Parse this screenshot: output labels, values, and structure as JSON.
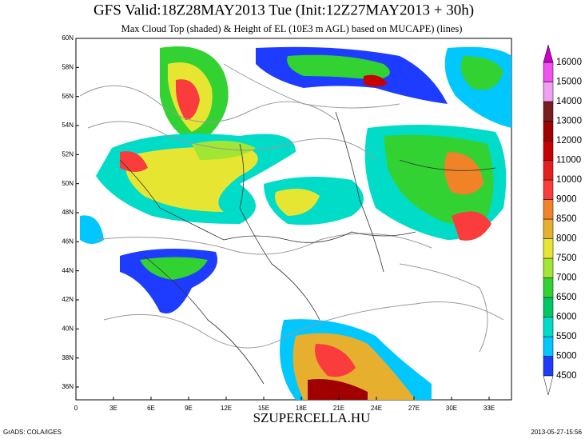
{
  "header": {
    "title": "GFS Valid:18Z28MAY2013 Tue (Init:12Z27MAY2013 + 30h)",
    "subtitle": "Max Cloud Top (shaded) & Height of EL (10E3 m AGL) based on MUCAPE) (lines)"
  },
  "map": {
    "lat_labels": [
      "36N",
      "38N",
      "40N",
      "42N",
      "44N",
      "46N",
      "48N",
      "50N",
      "52N",
      "54N",
      "56N",
      "58N",
      "60N"
    ],
    "lon_labels": [
      "0",
      "3E",
      "6E",
      "9E",
      "12E",
      "15E",
      "18E",
      "21E",
      "24E",
      "27E",
      "30E",
      "33E"
    ]
  },
  "colorbar": {
    "labels": [
      "4500",
      "5000",
      "5500",
      "6000",
      "6500",
      "7000",
      "7500",
      "8000",
      "8500",
      "9000",
      "10000",
      "11000",
      "12000",
      "13000",
      "14000",
      "15000",
      "16000"
    ],
    "colors": [
      "#1e3cff",
      "#00c8ff",
      "#00dcc8",
      "#00c864",
      "#32d232",
      "#a0e632",
      "#e6e632",
      "#e6af2d",
      "#f08228",
      "#fa3c3c",
      "#e61e1e",
      "#c80000",
      "#a00000",
      "#781e1e",
      "#f0a0f0",
      "#f050f0"
    ],
    "below_color": "#ffffff",
    "above_color": "#c800c8"
  },
  "footer": {
    "left": "GrADS: COLA/IGES",
    "center": "SZUPERCELLA.HU",
    "right": "2013-05-27-15:56"
  }
}
